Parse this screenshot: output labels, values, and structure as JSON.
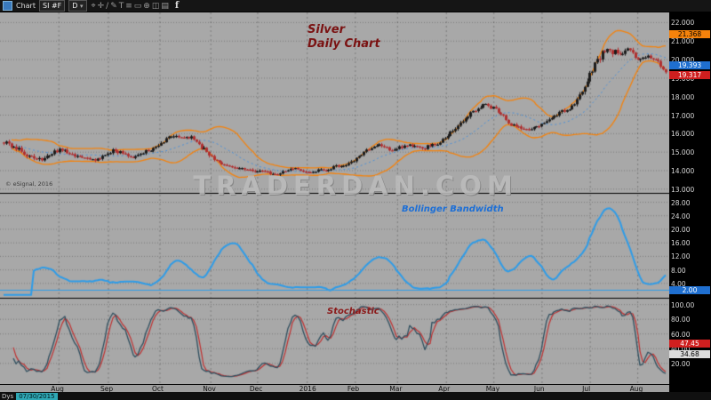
{
  "toolbar": {
    "window_label": "Chart",
    "symbol": "SI #F",
    "interval": "D",
    "icons": [
      {
        "name": "pointer-tool-icon",
        "glyph": "⌖"
      },
      {
        "name": "crosshair-tool-icon",
        "glyph": "✛"
      },
      {
        "name": "trendline-tool-icon",
        "glyph": "∕"
      },
      {
        "name": "pencil-tool-icon",
        "glyph": "✎"
      },
      {
        "name": "text-tool-icon",
        "glyph": "T"
      },
      {
        "name": "fibonacci-tool-icon",
        "glyph": "≡"
      },
      {
        "name": "rectangle-tool-icon",
        "glyph": "▭"
      },
      {
        "name": "zoom-tool-icon",
        "glyph": "⊕"
      },
      {
        "name": "camera-icon",
        "glyph": "◫"
      },
      {
        "name": "grid-settings-icon",
        "glyph": "▤"
      }
    ],
    "facebook_label": "f"
  },
  "main_panel": {
    "title_line1": "Silver",
    "title_line2": "Daily Chart",
    "watermark": "TRADERDAN.COM",
    "copyright": "© eSignal, 2016",
    "ticks": [
      {
        "v": 22,
        "label": "22.000"
      },
      {
        "v": 21,
        "label": "21.000"
      },
      {
        "v": 20,
        "label": "20.000"
      },
      {
        "v": 19,
        "label": "19.000"
      },
      {
        "v": 18,
        "label": "18.000"
      },
      {
        "v": 17,
        "label": "17.000"
      },
      {
        "v": 16,
        "label": "16.000"
      },
      {
        "v": 15,
        "label": "15.000"
      },
      {
        "v": 14,
        "label": "14.000"
      },
      {
        "v": 13,
        "label": "13.000"
      }
    ],
    "badges": [
      {
        "v": 21.368,
        "label": "21.368",
        "bg": "#f5820b",
        "fg": "#000",
        "dy": 0
      },
      {
        "v": 19.393,
        "label": "19.393",
        "bg": "#1f6fd0",
        "fg": "#fff",
        "dy": -6
      },
      {
        "v": 19.317,
        "label": "19.317",
        "bg": "#d01f1f",
        "fg": "#fff",
        "dy": 3
      }
    ]
  },
  "bandwidth_panel": {
    "label": "Bollinger Bandwidth",
    "ticks": [
      {
        "v": 28,
        "label": "28.00"
      },
      {
        "v": 24,
        "label": "24.00"
      },
      {
        "v": 20,
        "label": "20.00"
      },
      {
        "v": 16,
        "label": "16.00"
      },
      {
        "v": 12,
        "label": "12.00"
      },
      {
        "v": 8,
        "label": "8.00"
      },
      {
        "v": 4,
        "label": "4.00"
      }
    ],
    "badges": [
      {
        "v": 2.0,
        "label": "2.00",
        "bg": "#1f6fd0",
        "fg": "#fff",
        "dy": 0
      }
    ]
  },
  "stochastic_panel": {
    "label": "Stochastic",
    "ticks": [
      {
        "v": 100,
        "label": "100.00"
      },
      {
        "v": 80,
        "label": "80.00"
      },
      {
        "v": 60,
        "label": "60.00"
      },
      {
        "v": 40,
        "label": "40.00"
      },
      {
        "v": 20,
        "label": "20.00"
      }
    ],
    "badges": [
      {
        "v": 47.45,
        "label": "47.45",
        "bg": "#d01f1f",
        "fg": "#fff",
        "dy": 0
      },
      {
        "v": 34.68,
        "label": "34.68",
        "bg": "#dcdcdc",
        "fg": "#000",
        "dy": 2
      }
    ]
  },
  "time_axis": {
    "labels": [
      {
        "f": 0.088,
        "label": "Aug"
      },
      {
        "f": 0.162,
        "label": "Sep"
      },
      {
        "f": 0.239,
        "label": "Oct"
      },
      {
        "f": 0.315,
        "label": "Nov"
      },
      {
        "f": 0.385,
        "label": "Dec"
      },
      {
        "f": 0.459,
        "label": "2016"
      },
      {
        "f": 0.531,
        "label": "Feb"
      },
      {
        "f": 0.594,
        "label": "Mar"
      },
      {
        "f": 0.667,
        "label": "Apr"
      },
      {
        "f": 0.738,
        "label": "May"
      },
      {
        "f": 0.81,
        "label": "Jun"
      },
      {
        "f": 0.882,
        "label": "Jul"
      },
      {
        "f": 0.953,
        "label": "Aug"
      }
    ]
  },
  "status_bar": {
    "mode": "Dys",
    "date": "07/30/2015"
  },
  "chart_data": {
    "type": "candlestick",
    "symbol": "SI #F",
    "interval": "Daily",
    "title": "Silver Daily Chart",
    "x_range": [
      "Aug 2015",
      "Aug 2016"
    ],
    "price_axis_range": [
      12.75,
      22.55
    ],
    "last_price": 19.317,
    "anchors": [
      [
        0.0,
        15.5,
        0.14
      ],
      [
        0.025,
        15.05,
        0.15
      ],
      [
        0.055,
        14.55,
        0.14
      ],
      [
        0.085,
        15.2,
        0.12
      ],
      [
        0.11,
        14.8,
        0.11
      ],
      [
        0.14,
        14.55,
        0.1
      ],
      [
        0.165,
        15.1,
        0.11
      ],
      [
        0.195,
        14.7,
        0.1
      ],
      [
        0.225,
        15.2,
        0.11
      ],
      [
        0.255,
        15.9,
        0.12
      ],
      [
        0.285,
        15.75,
        0.11
      ],
      [
        0.31,
        14.9,
        0.13
      ],
      [
        0.33,
        14.25,
        0.1
      ],
      [
        0.36,
        14.1,
        0.09
      ],
      [
        0.385,
        14.0,
        0.09
      ],
      [
        0.41,
        13.8,
        0.08
      ],
      [
        0.435,
        14.1,
        0.09
      ],
      [
        0.46,
        13.9,
        0.08
      ],
      [
        0.49,
        14.1,
        0.08
      ],
      [
        0.52,
        14.35,
        0.09
      ],
      [
        0.545,
        15.0,
        0.11
      ],
      [
        0.565,
        15.45,
        0.1
      ],
      [
        0.585,
        15.05,
        0.1
      ],
      [
        0.61,
        15.4,
        0.09
      ],
      [
        0.635,
        15.2,
        0.09
      ],
      [
        0.66,
        15.55,
        0.1
      ],
      [
        0.685,
        16.35,
        0.12
      ],
      [
        0.705,
        17.1,
        0.13
      ],
      [
        0.725,
        17.6,
        0.13
      ],
      [
        0.745,
        17.3,
        0.11
      ],
      [
        0.765,
        16.45,
        0.11
      ],
      [
        0.79,
        16.2,
        0.1
      ],
      [
        0.815,
        16.55,
        0.11
      ],
      [
        0.84,
        17.2,
        0.12
      ],
      [
        0.86,
        17.45,
        0.11
      ],
      [
        0.878,
        18.6,
        0.18
      ],
      [
        0.895,
        19.9,
        0.22
      ],
      [
        0.912,
        20.6,
        0.22
      ],
      [
        0.928,
        20.3,
        0.18
      ],
      [
        0.944,
        20.6,
        0.16
      ],
      [
        0.958,
        19.85,
        0.14
      ],
      [
        0.972,
        20.2,
        0.12
      ],
      [
        0.986,
        19.95,
        0.11
      ],
      [
        1.0,
        19.32,
        0.1
      ]
    ],
    "indicators": [
      {
        "name": "Bollinger Bands",
        "period": 20,
        "stdev_mult": 2,
        "upper_value": 21.368,
        "lower_value": 19.393,
        "band_color": "#f5820b",
        "middle_color": "#4a90d9"
      },
      {
        "name": "Bollinger Bandwidth",
        "color": "#2e9ce8",
        "range": [
          0,
          30
        ],
        "threshold": 2.0
      },
      {
        "name": "Stochastic",
        "k_color": "#2f4f5f",
        "d_color": "#c03030",
        "range": [
          0,
          100
        ],
        "last_d": 47.45,
        "last_k": 34.68
      }
    ],
    "colors": {
      "panel_bg": "#a8a8a8",
      "grid": "rgba(40,40,40,0.35)",
      "candle_up": "#1c1c1c",
      "candle_down": "#b03030",
      "axis_bg": "#000000",
      "axis_fg": "#d8d8d8"
    }
  }
}
